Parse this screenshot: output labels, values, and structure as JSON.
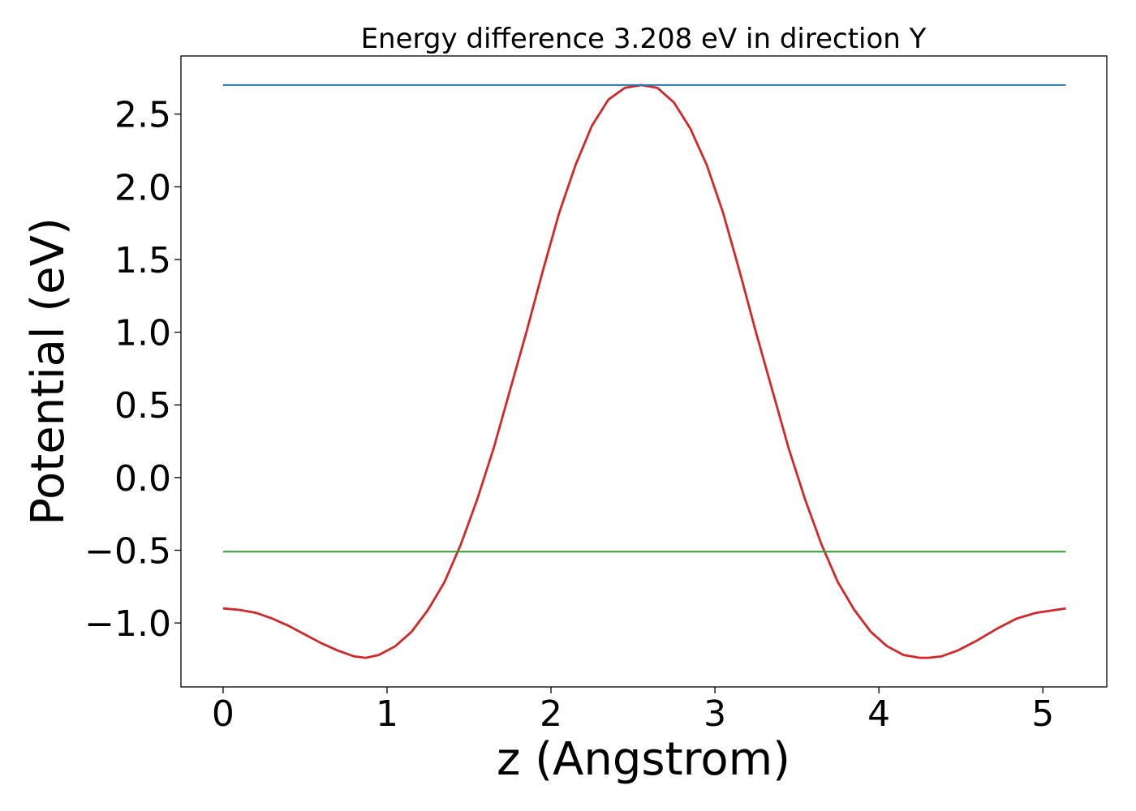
{
  "chart_data": {
    "type": "line",
    "title": "Energy difference 3.208 eV in direction Y",
    "xlabel": "z (Angstrom)",
    "ylabel": "Potential (eV)",
    "xlim": [
      -0.257,
      5.39
    ],
    "ylim": [
      -1.44,
      2.9
    ],
    "xticks": [
      0,
      1,
      2,
      3,
      4,
      5
    ],
    "yticks": [
      -1.0,
      -0.5,
      0.0,
      0.5,
      1.0,
      1.5,
      2.0,
      2.5
    ],
    "xtick_labels": [
      "0",
      "1",
      "2",
      "3",
      "4",
      "5"
    ],
    "ytick_labels": [
      "−1.0",
      "−0.5",
      "0.0",
      "0.5",
      "1.0",
      "1.5",
      "2.0",
      "2.5"
    ],
    "grid": false,
    "legend": "none",
    "series": [
      {
        "color": "#d62728",
        "x": [
          0.0,
          0.1,
          0.2,
          0.3,
          0.4,
          0.5,
          0.6,
          0.7,
          0.8,
          0.87,
          0.95,
          1.05,
          1.15,
          1.25,
          1.35,
          1.45,
          1.55,
          1.65,
          1.75,
          1.85,
          1.95,
          2.05,
          2.15,
          2.25,
          2.35,
          2.45,
          2.55,
          2.6,
          2.65,
          2.75,
          2.85,
          2.95,
          3.05,
          3.15,
          3.25,
          3.35,
          3.45,
          3.55,
          3.65,
          3.75,
          3.85,
          3.95,
          4.05,
          4.15,
          4.25,
          4.3,
          4.38,
          4.48,
          4.6,
          4.72,
          4.84,
          4.96,
          5.08,
          5.14
        ],
        "y": [
          -0.9,
          -0.91,
          -0.93,
          -0.97,
          -1.02,
          -1.08,
          -1.14,
          -1.19,
          -1.23,
          -1.24,
          -1.22,
          -1.16,
          -1.06,
          -0.91,
          -0.72,
          -0.46,
          -0.15,
          0.2,
          0.6,
          1.0,
          1.42,
          1.82,
          2.15,
          2.42,
          2.6,
          2.68,
          2.7,
          2.69,
          2.68,
          2.58,
          2.4,
          2.15,
          1.82,
          1.42,
          1.0,
          0.6,
          0.2,
          -0.15,
          -0.46,
          -0.72,
          -0.91,
          -1.06,
          -1.16,
          -1.22,
          -1.24,
          -1.24,
          -1.23,
          -1.19,
          -1.12,
          -1.04,
          -0.97,
          -0.93,
          -0.91,
          -0.9
        ]
      },
      {
        "color": "#1f77b4",
        "x": [
          0.0,
          5.14
        ],
        "y": [
          2.7,
          2.7
        ]
      },
      {
        "color": "#2ca02c",
        "x": [
          0.0,
          5.14
        ],
        "y": [
          -0.51,
          -0.51
        ]
      }
    ]
  }
}
